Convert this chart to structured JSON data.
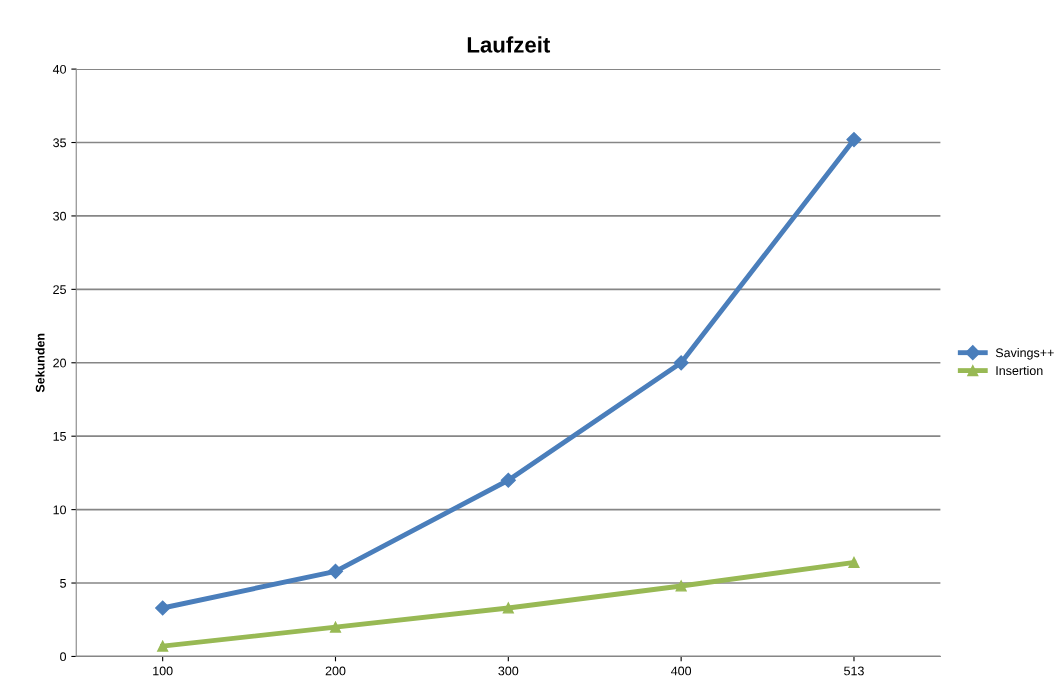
{
  "chart_data": {
    "type": "line",
    "title": "Laufzeit",
    "ylabel": "Sekunden",
    "categories": [
      "100",
      "200",
      "300",
      "400",
      "513"
    ],
    "series": [
      {
        "name": "Savings++",
        "color": "#4a7ebb",
        "marker": "diamond",
        "values": [
          3.3,
          5.8,
          12.0,
          20.0,
          35.2
        ]
      },
      {
        "name": "Insertion",
        "color": "#98b954",
        "marker": "triangle",
        "values": [
          0.7,
          2.0,
          3.3,
          4.8,
          6.4
        ]
      }
    ],
    "ylim": [
      0,
      40
    ],
    "yticks": [
      0,
      5,
      10,
      15,
      20,
      25,
      30,
      35,
      40
    ],
    "grid": "y",
    "legend": "right",
    "line_style": "solid"
  }
}
